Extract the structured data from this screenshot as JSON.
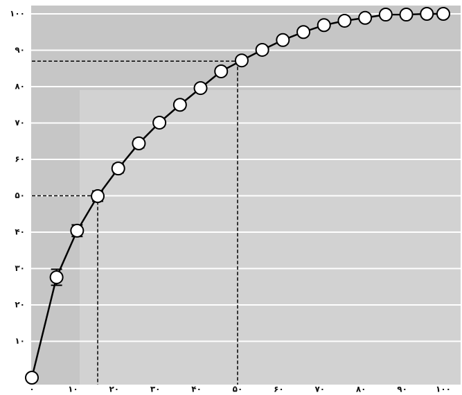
{
  "chart_data": {
    "type": "line",
    "x": [
      0,
      6,
      11,
      16,
      21,
      26,
      31,
      36,
      41,
      46,
      51,
      56,
      61,
      66,
      71,
      76,
      81,
      86,
      91,
      96,
      100
    ],
    "series": [
      {
        "color": "#000000",
        "values": [
          0,
          27.6,
          40.4,
          49.9,
          57.5,
          64.4,
          70.1,
          75,
          79.6,
          84.2,
          87.2,
          90.1,
          92.8,
          95,
          96.9,
          98.1,
          98.9,
          99.8,
          99.8,
          100,
          100
        ],
        "errors": [
          0,
          2.2,
          1.6,
          1.4,
          1.2,
          1.2,
          1.1,
          1.1,
          1,
          1,
          1,
          1,
          1,
          1,
          1,
          0.9,
          0.5,
          0.4,
          0.3,
          0.3,
          0.3
        ]
      }
    ],
    "xlim": [
      0,
      100
    ],
    "ylim": [
      0,
      100
    ],
    "xticks": [
      {
        "value": 0,
        "label": "۰"
      },
      {
        "value": 10,
        "label": "۱۰"
      },
      {
        "value": 20,
        "label": "۲۰"
      },
      {
        "value": 30,
        "label": "۳۰"
      },
      {
        "value": 40,
        "label": "۴۰"
      },
      {
        "value": 50,
        "label": "۵۰"
      },
      {
        "value": 60,
        "label": "۶۰"
      },
      {
        "value": 70,
        "label": "۷۰"
      },
      {
        "value": 80,
        "label": "۸۰"
      },
      {
        "value": 90,
        "label": "۹۰"
      },
      {
        "value": 100,
        "label": "۱۰۰"
      }
    ],
    "yticks": [
      {
        "value": 10,
        "label": "۱۰"
      },
      {
        "value": 20,
        "label": "۲۰"
      },
      {
        "value": 30,
        "label": "۳۰"
      },
      {
        "value": 40,
        "label": "۴۰"
      },
      {
        "value": 50,
        "label": "۵۰"
      },
      {
        "value": 60,
        "label": "۶۰"
      },
      {
        "value": 70,
        "label": "۷۰"
      },
      {
        "value": 80,
        "label": "۸۰"
      },
      {
        "value": 90,
        "label": "۹۰"
      },
      {
        "value": 100,
        "label": "۱۰۰"
      }
    ],
    "grid": true,
    "reference_lines": [
      {
        "x": 16,
        "y": 50
      },
      {
        "x": 50,
        "y": 87
      }
    ]
  }
}
